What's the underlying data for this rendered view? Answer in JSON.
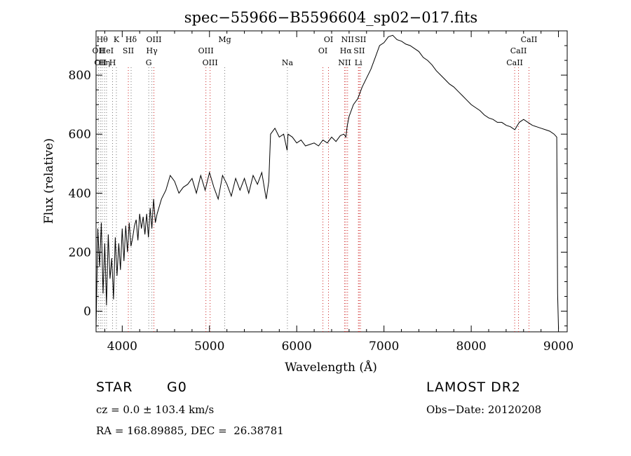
{
  "info": {
    "object_type": "STAR",
    "subclass": "G0",
    "survey": "LAMOST DR2",
    "cz_line": "cz = 0.0 ± 103.4 km/s",
    "obs_date_line": "Obs−Date: 20120208",
    "radec_line": "RA = 168.89885, DEC =  26.38781"
  },
  "chart_data": {
    "type": "line",
    "title": "spec−55966−B5596604_sp02−017.fits",
    "xlabel": "Wavelength (Å)",
    "ylabel": "Flux (relative)",
    "xlim": [
      3700,
      9100
    ],
    "ylim": [
      -70,
      950
    ],
    "xticks": [
      4000,
      5000,
      6000,
      7000,
      8000,
      9000
    ],
    "yticks": [
      0,
      200,
      400,
      600,
      800
    ],
    "line_color": "#000000",
    "marker_colors": {
      "black_dotted": "#777777",
      "red_dotted": "#cc2222"
    },
    "series": [
      {
        "x": [
          3700,
          3720,
          3740,
          3760,
          3780,
          3800,
          3820,
          3840,
          3860,
          3880,
          3900,
          3920,
          3940,
          3960,
          3980,
          4000,
          4020,
          4040,
          4060,
          4080,
          4100,
          4120,
          4140,
          4160,
          4180,
          4200,
          4220,
          4240,
          4260,
          4280,
          4300,
          4320,
          4340,
          4360,
          4380,
          4400,
          4450,
          4500,
          4550,
          4600,
          4650,
          4700,
          4750,
          4800,
          4850,
          4900,
          4950,
          5000,
          5050,
          5100,
          5150,
          5200,
          5250,
          5300,
          5350,
          5400,
          5450,
          5500,
          5550,
          5600,
          5650,
          5680,
          5700,
          5750,
          5800,
          5850,
          5890,
          5900,
          5950,
          6000,
          6050,
          6100,
          6150,
          6200,
          6250,
          6300,
          6350,
          6400,
          6450,
          6500,
          6540,
          6563,
          6580,
          6600,
          6650,
          6700,
          6750,
          6800,
          6850,
          6900,
          6950,
          7000,
          7050,
          7100,
          7150,
          7200,
          7250,
          7300,
          7350,
          7400,
          7450,
          7500,
          7550,
          7600,
          7650,
          7700,
          7750,
          7800,
          7850,
          7900,
          7950,
          8000,
          8050,
          8100,
          8150,
          8200,
          8250,
          8300,
          8350,
          8400,
          8450,
          8500,
          8550,
          8600,
          8650,
          8700,
          8750,
          8800,
          8850,
          8900,
          8950,
          8980,
          8990,
          9000
        ],
        "y": [
          -60,
          280,
          150,
          300,
          60,
          230,
          20,
          260,
          110,
          180,
          40,
          250,
          120,
          230,
          140,
          280,
          170,
          290,
          200,
          300,
          220,
          250,
          290,
          310,
          240,
          330,
          280,
          320,
          260,
          330,
          250,
          350,
          280,
          380,
          300,
          330,
          380,
          410,
          460,
          440,
          400,
          420,
          430,
          450,
          400,
          460,
          410,
          470,
          420,
          380,
          460,
          430,
          390,
          450,
          410,
          450,
          400,
          460,
          430,
          470,
          380,
          440,
          600,
          620,
          590,
          600,
          545,
          600,
          590,
          570,
          580,
          560,
          565,
          570,
          560,
          580,
          570,
          590,
          575,
          595,
          600,
          590,
          630,
          660,
          700,
          720,
          760,
          790,
          820,
          860,
          900,
          910,
          930,
          935,
          920,
          915,
          905,
          900,
          890,
          880,
          860,
          850,
          835,
          815,
          800,
          785,
          770,
          760,
          745,
          730,
          715,
          700,
          690,
          680,
          665,
          655,
          650,
          640,
          640,
          630,
          625,
          615,
          640,
          650,
          640,
          630,
          625,
          620,
          615,
          610,
          600,
          590,
          60,
          -60
        ]
      }
    ],
    "line_markers_black": [
      {
        "x": 3727,
        "label": "OII",
        "row": 1
      },
      {
        "x": 3750,
        "label": "OII",
        "row": 2
      },
      {
        "x": 3770,
        "label": "Hθ",
        "row": 0
      },
      {
        "x": 3797,
        "label": "Hη",
        "row": 2
      },
      {
        "x": 3820,
        "label": "HeI",
        "row": 1
      },
      {
        "x": 3889,
        "label": "H",
        "row": 2
      },
      {
        "x": 3933,
        "label": "K",
        "row": 0
      },
      {
        "x": 4102,
        "label": "Hδ",
        "row": 0
      },
      {
        "x": 4304,
        "label": "G",
        "row": 2
      },
      {
        "x": 4340,
        "label": "Hγ",
        "row": 1
      },
      {
        "x": 5175,
        "label": "Mg",
        "row": 0
      },
      {
        "x": 5893,
        "label": "Na",
        "row": 2
      }
    ],
    "line_markers_red": [
      {
        "x": 4070,
        "label": "SII",
        "row": 1
      },
      {
        "x": 4363,
        "label": "OIII",
        "row": 0
      },
      {
        "x": 4959,
        "label": "OIII",
        "row": 1
      },
      {
        "x": 5007,
        "label": "OIII",
        "row": 2
      },
      {
        "x": 6300,
        "label": "OI",
        "row": 1
      },
      {
        "x": 6364,
        "label": "OI",
        "row": 0
      },
      {
        "x": 6548,
        "label": "NII",
        "row": 2
      },
      {
        "x": 6563,
        "label": "Hα",
        "row": 1
      },
      {
        "x": 6583,
        "label": "NII",
        "row": 0
      },
      {
        "x": 6707,
        "label": "Li",
        "row": 2
      },
      {
        "x": 6716,
        "label": "SII",
        "row": 1
      },
      {
        "x": 6731,
        "label": "SII",
        "row": 0
      },
      {
        "x": 8498,
        "label": "CaII",
        "row": 2
      },
      {
        "x": 8542,
        "label": "CaII",
        "row": 1
      },
      {
        "x": 8662,
        "label": "CaII",
        "row": 0
      }
    ]
  }
}
